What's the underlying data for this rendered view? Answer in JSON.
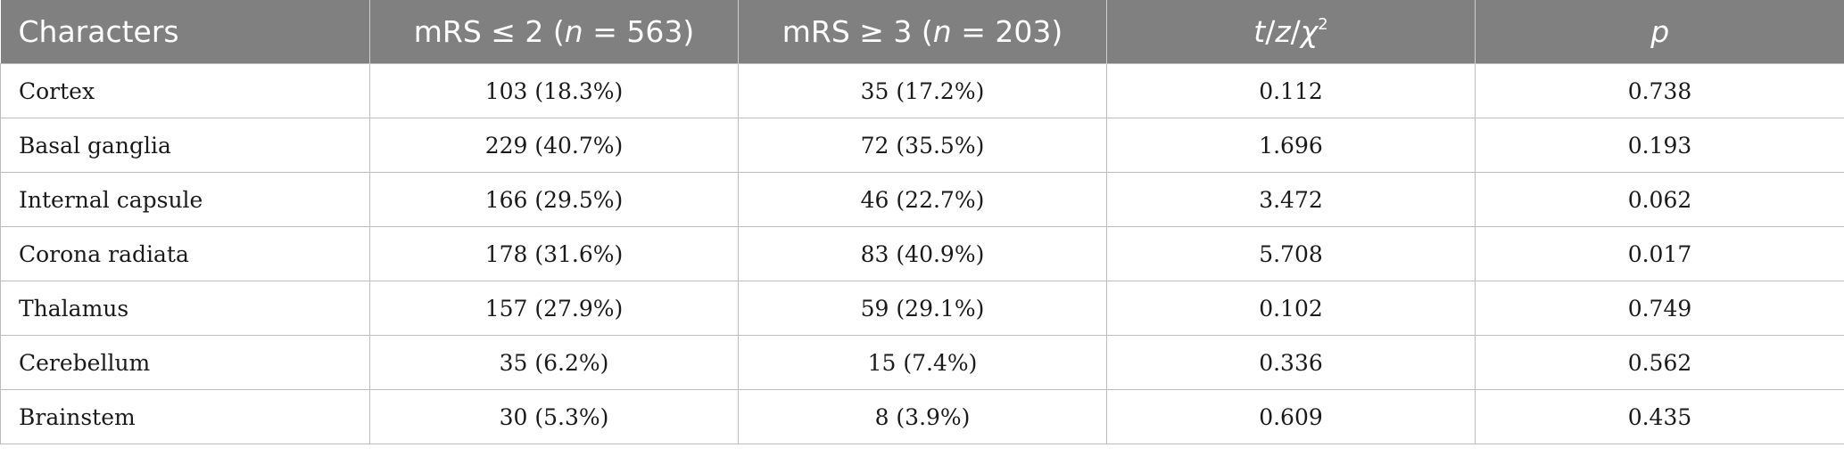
{
  "table": {
    "headers": {
      "col0": "Characters",
      "col1_prefix": "mRS ≤ 2 (",
      "col1_n": "n",
      "col1_suffix": " = 563)",
      "col2_prefix": "mRS ≥ 3 (",
      "col2_n": "n",
      "col2_suffix": " = 203)",
      "col3_t": "t",
      "col3_sep1": "/",
      "col3_z": "z",
      "col3_sep2": "/",
      "col3_chi": "χ",
      "col3_sup": "2",
      "col4": "p"
    },
    "rows": [
      {
        "label": "Cortex",
        "g1": "103 (18.3%)",
        "g2": "35 (17.2%)",
        "stat": "0.112",
        "p": "0.738"
      },
      {
        "label": "Basal ganglia",
        "g1": "229 (40.7%)",
        "g2": "72 (35.5%)",
        "stat": "1.696",
        "p": "0.193"
      },
      {
        "label": "Internal capsule",
        "g1": "166 (29.5%)",
        "g2": "46 (22.7%)",
        "stat": "3.472",
        "p": "0.062"
      },
      {
        "label": "Corona radiata",
        "g1": "178 (31.6%)",
        "g2": "83 (40.9%)",
        "stat": "5.708",
        "p": "0.017"
      },
      {
        "label": "Thalamus",
        "g1": "157 (27.9%)",
        "g2": "59 (29.1%)",
        "stat": "0.102",
        "p": "0.749"
      },
      {
        "label": "Cerebellum",
        "g1": "35 (6.2%)",
        "g2": "15 (7.4%)",
        "stat": "0.336",
        "p": "0.562"
      },
      {
        "label": "Brainstem",
        "g1": "30 (5.3%)",
        "g2": "8 (3.9%)",
        "stat": "0.609",
        "p": "0.435"
      }
    ]
  },
  "colors": {
    "header_bg": "#808080",
    "header_text": "#ffffff",
    "grid": "#bdbdbd"
  }
}
